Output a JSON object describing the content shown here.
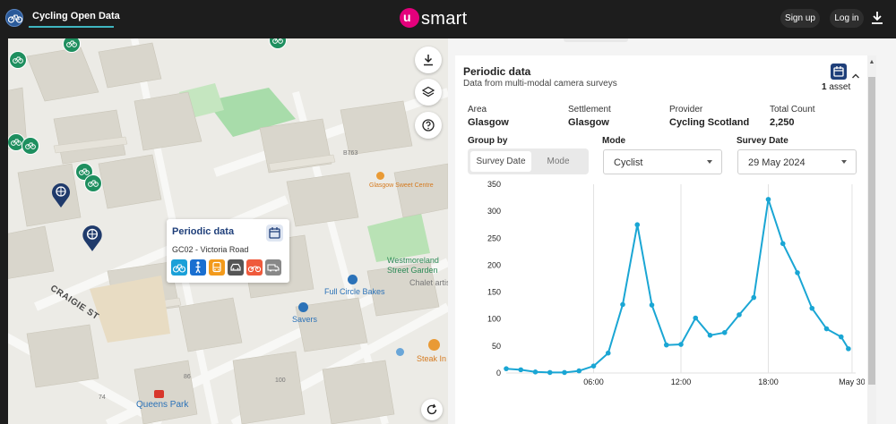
{
  "header": {
    "app_title": "Cycling Open Data",
    "brand_mark": "u",
    "brand_name": "smart",
    "signup_label": "Sign up",
    "login_label": "Log in",
    "accent": "#3fb6c1",
    "brand_color": "#e4007c"
  },
  "map": {
    "labels": {
      "road_b763": "B763",
      "glasgow_sweet_centre": "Glasgow Sweet Centre",
      "westmoreland": "Westmoreland",
      "street_garden": "Street Garden",
      "full_circle_bakes": "Full Circle Bakes",
      "chalet_artist": "Chalet artis",
      "savers": "Savers",
      "steak_in": "Steak In",
      "craigie_st": "CRAIGIE ST",
      "queens_park": "Queens Park",
      "num_74": "74",
      "num_86": "86",
      "num_100": "100"
    },
    "popup": {
      "title": "Periodic data",
      "location": "GC02 - Victoria Road",
      "modes": [
        "bicycle-icon",
        "pedestrian-icon",
        "bus-icon",
        "car-icon",
        "motorcycle-icon",
        "van-icon"
      ],
      "mode_colors": [
        "#1aa0d8",
        "#1a6fd0",
        "#f39a1a",
        "#555555",
        "#ef5a3c",
        "#888888"
      ]
    }
  },
  "panel": {
    "title": "Periodic data",
    "subtitle": "Data from multi-modal camera surveys",
    "asset_count": "1",
    "asset_label": "asset",
    "meta": [
      {
        "label": "Area",
        "value": "Glasgow"
      },
      {
        "label": "Settlement",
        "value": "Glasgow"
      },
      {
        "label": "Provider",
        "value": "Cycling Scotland"
      },
      {
        "label": "Total Count",
        "value": "2,250"
      }
    ],
    "group_by_label": "Group by",
    "group_by_options": [
      "Survey Date",
      "Mode"
    ],
    "group_by_selected": "Survey Date",
    "mode_label": "Mode",
    "mode_value": "Cyclist",
    "survey_date_label": "Survey Date",
    "survey_date_value": "29 May 2024"
  },
  "chart_data": {
    "type": "line",
    "title": "",
    "xlabel": "",
    "ylabel": "",
    "color": "#1aa6d4",
    "ylim": [
      0,
      350
    ],
    "yticks": [
      0,
      50,
      100,
      150,
      200,
      250,
      300,
      350
    ],
    "xlim": [
      0,
      24
    ],
    "xticks": [
      {
        "x": 6,
        "label": "06:00"
      },
      {
        "x": 12,
        "label": "12:00"
      },
      {
        "x": 18,
        "label": "18:00"
      },
      {
        "x": 23.75,
        "label": "May 30"
      }
    ],
    "grid": true,
    "x": [
      0,
      1,
      2,
      3,
      4,
      5,
      6,
      7,
      8,
      9,
      10,
      11,
      12,
      13,
      14,
      15,
      16,
      17,
      18,
      19,
      20,
      21,
      22,
      23,
      23.5
    ],
    "y": [
      8,
      6,
      2,
      1,
      1,
      4,
      13,
      37,
      127,
      275,
      126,
      52,
      53,
      102,
      70,
      75,
      108,
      140,
      322,
      240,
      186,
      120,
      82,
      67,
      45
    ]
  }
}
